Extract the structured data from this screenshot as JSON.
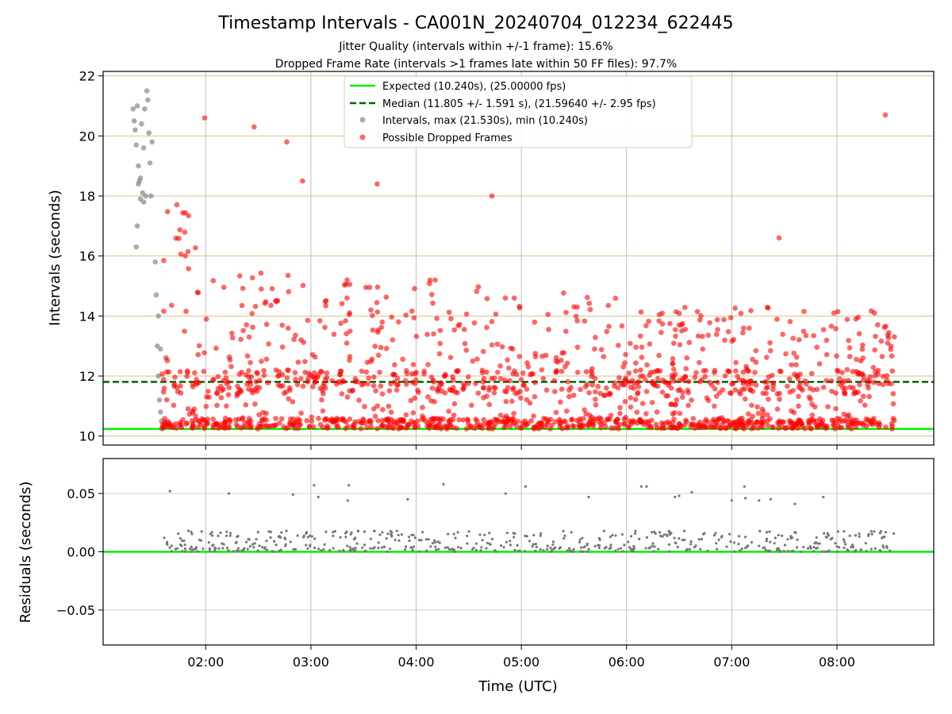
{
  "chart_data": {
    "type": "scatter",
    "title": "Timestamp Intervals - CA001N_20240704_012234_622445",
    "subtitle_lines": [
      "Jitter Quality (intervals within +/-1 frame): 15.6%",
      "Dropped Frame Rate (intervals >1 frames late within 50 FF files): 97.7%"
    ],
    "xlabel": "Time (UTC)",
    "x_tick_labels": [
      "02:00",
      "03:00",
      "04:00",
      "05:00",
      "06:00",
      "07:00",
      "08:00"
    ],
    "x_tick_hours": [
      2,
      3,
      4,
      5,
      6,
      7,
      8
    ],
    "xlim_hours": [
      1.025,
      8.92
    ],
    "panels": [
      {
        "id": "intervals",
        "ylabel": "Intervals (seconds)",
        "ylim": [
          9.7,
          22.15
        ],
        "y_ticks": [
          10,
          12,
          14,
          16,
          18,
          20,
          22
        ],
        "y_tick_labels": [
          "10",
          "12",
          "14",
          "16",
          "18",
          "20",
          "22"
        ],
        "legend_position": "upper center",
        "reference_lines": [
          {
            "name": "Expected (10.240s), (25.00000 fps)",
            "y": 10.24,
            "color": "#00ee00",
            "style": "solid"
          },
          {
            "name": "Median (11.805 +/- 1.591 s), (21.59640 +/- 2.95 fps)",
            "y": 11.805,
            "color": "#006400",
            "style": "dashed"
          }
        ],
        "scatter_legend": [
          {
            "name": "Intervals, max (21.530s), min (10.240s)",
            "color": "#888888"
          },
          {
            "name": "Possible Dropped Frames",
            "color": "#ff0000"
          }
        ],
        "gray_points": [
          [
            1.31,
            20.9
          ],
          [
            1.32,
            20.5
          ],
          [
            1.33,
            20.2
          ],
          [
            1.34,
            19.7
          ],
          [
            1.35,
            21.0
          ],
          [
            1.36,
            19.0
          ],
          [
            1.37,
            18.5
          ],
          [
            1.38,
            17.9
          ],
          [
            1.39,
            20.4
          ],
          [
            1.4,
            18.1
          ],
          [
            1.41,
            19.6
          ],
          [
            1.42,
            20.9
          ],
          [
            1.43,
            18.0
          ],
          [
            1.44,
            21.5
          ],
          [
            1.45,
            21.2
          ],
          [
            1.46,
            20.1
          ],
          [
            1.47,
            19.1
          ],
          [
            1.48,
            18.0
          ],
          [
            1.49,
            19.8
          ],
          [
            1.34,
            16.3
          ],
          [
            1.35,
            17.0
          ],
          [
            1.36,
            18.4
          ],
          [
            1.38,
            18.6
          ],
          [
            1.41,
            17.8
          ],
          [
            1.52,
            15.8
          ],
          [
            1.53,
            14.7
          ],
          [
            1.54,
            13.0
          ],
          [
            1.55,
            12.0
          ],
          [
            1.56,
            11.2
          ],
          [
            1.57,
            10.8
          ],
          [
            1.58,
            10.5
          ],
          [
            1.59,
            10.24
          ],
          [
            1.55,
            14.0
          ],
          [
            1.57,
            12.9
          ]
        ],
        "red_point_summary": {
          "x_range_hours": [
            1.58,
            8.55
          ],
          "y_min": 10.24,
          "y_max": 20.65,
          "outliers": [
            [
              1.99,
              20.6
            ],
            [
              2.46,
              20.3
            ],
            [
              2.77,
              19.8
            ],
            [
              2.92,
              18.5
            ],
            [
              3.63,
              18.4
            ],
            [
              4.72,
              18.0
            ],
            [
              8.46,
              20.7
            ],
            [
              7.45,
              16.6
            ]
          ]
        }
      },
      {
        "id": "residuals",
        "ylabel": "Residuals (seconds)",
        "ylim": [
          -0.08,
          0.08
        ],
        "y_ticks": [
          -0.05,
          0.0,
          0.05
        ],
        "y_tick_labels": [
          "−0.05",
          "0.00",
          "0.05"
        ],
        "reference_lines": [
          {
            "y": 0.0,
            "color": "#00ee00",
            "style": "solid"
          }
        ],
        "point_color": "#777777",
        "high_points": [
          [
            1.66,
            0.052
          ],
          [
            2.22,
            0.05
          ],
          [
            2.83,
            0.049
          ],
          [
            3.03,
            0.057
          ],
          [
            3.07,
            0.047
          ],
          [
            3.36,
            0.057
          ],
          [
            3.35,
            0.044
          ],
          [
            3.92,
            0.045
          ],
          [
            4.26,
            0.058
          ],
          [
            4.85,
            0.05
          ],
          [
            5.04,
            0.056
          ],
          [
            5.64,
            0.047
          ],
          [
            6.14,
            0.056
          ],
          [
            6.19,
            0.056
          ],
          [
            6.46,
            0.047
          ],
          [
            6.5,
            0.048
          ],
          [
            6.62,
            0.051
          ],
          [
            7.0,
            0.044
          ],
          [
            7.12,
            0.056
          ],
          [
            7.13,
            0.046
          ],
          [
            7.26,
            0.044
          ],
          [
            7.37,
            0.045
          ],
          [
            7.6,
            0.041
          ],
          [
            7.87,
            0.047
          ]
        ]
      }
    ]
  }
}
